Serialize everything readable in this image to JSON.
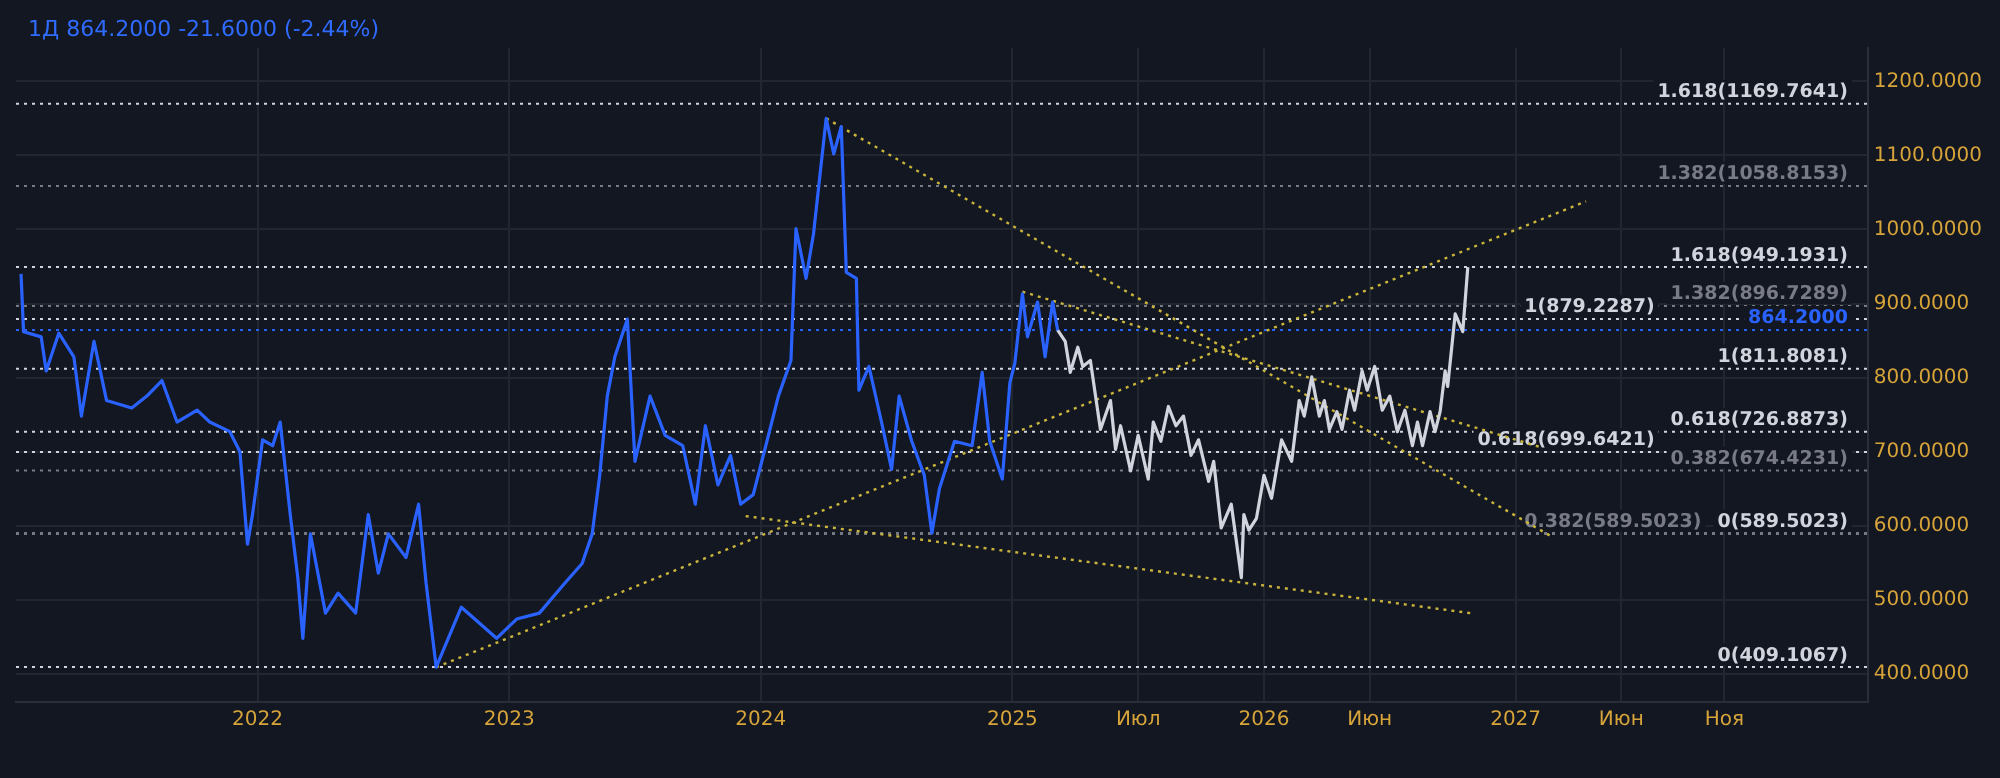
{
  "chart_data": {
    "type": "line",
    "title": "1Д 864.2000 -21.6000 (-2.44%)",
    "xlim": [
      2021.04,
      2028.4
    ],
    "xticks": [
      2022,
      2023,
      2024,
      2025,
      {
        "value": 2025.5,
        "label": "Июл"
      },
      2026,
      {
        "value": 2026.42,
        "label": "Июн"
      },
      2027,
      {
        "value": 2027.42,
        "label": "Июн"
      },
      {
        "value": 2027.83,
        "label": "Ноя"
      }
    ],
    "ylim": [
      362,
      1245
    ],
    "yticks": [
      {
        "value": 400,
        "label": "400.0000"
      },
      {
        "value": 500,
        "label": "500.0000"
      },
      {
        "value": 600,
        "label": "600.0000"
      },
      {
        "value": 700,
        "label": "700.0000"
      },
      {
        "value": 800,
        "label": "800.0000"
      },
      {
        "value": 900,
        "label": "900.0000"
      },
      {
        "value": 1000,
        "label": "1000.0000"
      },
      {
        "value": 1100,
        "label": "1100.0000"
      },
      {
        "value": 1200,
        "label": "1200.0000"
      }
    ],
    "grid": true,
    "legend": false,
    "marker": "none",
    "series": [
      {
        "color": "#2962ff",
        "line_style": "solid",
        "x": [
          2021.06,
          2021.07,
          2021.14,
          2021.16,
          2021.21,
          2021.27,
          2021.3,
          2021.35,
          2021.4,
          2021.5,
          2021.56,
          2021.62,
          2021.68,
          2021.76,
          2021.81,
          2021.89,
          2021.93,
          2021.96,
          2021.98,
          2022.02,
          2022.06,
          2022.09,
          2022.13,
          2022.16,
          2022.18,
          2022.21,
          2022.27,
          2022.32,
          2022.39,
          2022.44,
          2022.48,
          2022.52,
          2022.59,
          2022.64,
          2022.67,
          2022.71,
          2022.81,
          2022.88,
          2022.95,
          2023.03,
          2023.12,
          2023.22,
          2023.29,
          2023.33,
          2023.36,
          2023.39,
          2023.42,
          2023.47,
          2023.5,
          2023.56,
          2023.62,
          2023.69,
          2023.74,
          2023.78,
          2023.83,
          2023.88,
          2023.92,
          2023.97,
          2024.02,
          2024.07,
          2024.12,
          2024.14,
          2024.18,
          2024.21,
          2024.26,
          2024.29,
          2024.32,
          2024.34,
          2024.38,
          2024.39,
          2024.43,
          2024.48,
          2024.52,
          2024.55,
          2024.6,
          2024.65,
          2024.68,
          2024.71,
          2024.77,
          2024.84,
          2024.88,
          2024.91,
          2024.96,
          2024.99,
          2025.01,
          2025.04,
          2025.06,
          2025.1,
          2025.13,
          2025.16,
          2025.18
        ],
        "values": [
          940,
          862,
          855,
          809,
          860,
          828,
          748,
          849,
          769,
          759,
          775,
          796,
          740,
          756,
          740,
          727,
          700,
          575,
          615,
          716,
          708,
          740,
          615,
          530,
          448,
          589,
          482,
          509,
          482,
          615,
          536,
          589,
          557,
          629,
          522,
          409,
          490,
          469,
          448,
          474,
          482,
          522,
          549,
          589,
          668,
          775,
          828,
          879,
          687,
          775,
          722,
          708,
          629,
          735,
          655,
          695,
          629,
          642,
          708,
          775,
          823,
          1001,
          934,
          995,
          1150,
          1102,
          1139,
          942,
          934,
          783,
          815,
          740,
          676,
          775,
          714,
          668,
          590,
          650,
          714,
          708,
          807,
          714,
          663,
          793,
          820,
          913,
          855,
          902,
          828,
          902,
          864
        ]
      },
      {
        "color": "#d1d4dc",
        "line_style": "solid",
        "x": [
          2025.18,
          2025.21,
          2025.23,
          2025.26,
          2025.28,
          2025.31,
          2025.35,
          2025.39,
          2025.41,
          2025.43,
          2025.47,
          2025.5,
          2025.54,
          2025.56,
          2025.59,
          2025.62,
          2025.65,
          2025.68,
          2025.71,
          2025.74,
          2025.78,
          2025.8,
          2025.83,
          2025.87,
          2025.91,
          2025.92,
          2025.94,
          2025.97,
          2026,
          2026.03,
          2026.07,
          2026.11,
          2026.14,
          2026.16,
          2026.19,
          2026.22,
          2026.24,
          2026.26,
          2026.29,
          2026.31,
          2026.34,
          2026.36,
          2026.39,
          2026.41,
          2026.44,
          2026.47,
          2026.5,
          2026.53,
          2026.56,
          2026.59,
          2026.61,
          2026.63,
          2026.66,
          2026.68,
          2026.7,
          2026.72,
          2026.73,
          2026.76,
          2026.79,
          2026.81
        ],
        "values": [
          864,
          849,
          807,
          841,
          815,
          823,
          730,
          769,
          703,
          735,
          674,
          722,
          663,
          740,
          714,
          761,
          735,
          748,
          695,
          716,
          660,
          687,
          597,
          629,
          530,
          615,
          594,
          610,
          668,
          637,
          716,
          687,
          769,
          748,
          801,
          748,
          769,
          730,
          754,
          730,
          783,
          756,
          809,
          783,
          815,
          756,
          775,
          727,
          756,
          708,
          740,
          708,
          754,
          727,
          754,
          809,
          788,
          886,
          862,
          949
        ]
      },
      {
        "color": "#c9b53c",
        "line_style": "dotted",
        "x": [
          2024.26,
          2027.14
        ],
        "values": [
          1150,
          586
        ]
      },
      {
        "color": "#c9b53c",
        "line_style": "dotted",
        "x": [
          2025.04,
          2027.1
        ],
        "values": [
          916,
          706
        ]
      },
      {
        "color": "#c9b53c",
        "line_style": "dotted",
        "x": [
          2022.71,
          2027.28
        ],
        "values": [
          409,
          1038
        ]
      },
      {
        "color": "#c9b53c",
        "line_style": "dotted",
        "x": [
          2023.94,
          2026.82
        ],
        "values": [
          613,
          482
        ]
      }
    ],
    "ref_lines": [
      {
        "axis": "y",
        "value": 1169.7641,
        "label": "1.618(1169.7641)",
        "color": "#d1d4dc",
        "line_style": "dotted"
      },
      {
        "axis": "y",
        "value": 1058.8153,
        "label": "1.382(1058.8153)",
        "color": "#787b86",
        "line_style": "dotted"
      },
      {
        "axis": "y",
        "value": 949.1931,
        "label": "1.618(949.1931)",
        "color": "#d1d4dc",
        "line_style": "dotted"
      },
      {
        "axis": "y",
        "value": 896.7289,
        "label": "1.382(896.7289)",
        "color": "#787b86",
        "line_style": "dotted"
      },
      {
        "axis": "y",
        "value": 879.2287,
        "label": "1(879.2287)",
        "color": "#d1d4dc",
        "line_style": "dotted"
      },
      {
        "axis": "y",
        "value": 864.2,
        "label": "864.2000",
        "color": "#2962ff",
        "line_style": "dotted"
      },
      {
        "axis": "y",
        "value": 811.8081,
        "label": "1(811.8081)",
        "color": "#d1d4dc",
        "line_style": "dotted"
      },
      {
        "axis": "y",
        "value": 726.8873,
        "label": "0.618(726.8873)",
        "color": "#d1d4dc",
        "line_style": "dotted"
      },
      {
        "axis": "y",
        "value": 699.6421,
        "label": "0.618(699.6421)",
        "color": "#d1d4dc",
        "line_style": "dotted"
      },
      {
        "axis": "y",
        "value": 674.4231,
        "label": "0.382(674.4231)",
        "color": "#787b86",
        "line_style": "dotted"
      },
      {
        "axis": "y",
        "value": 589.5023,
        "label": "0(589.5023)",
        "color": "#d1d4dc",
        "line_style": "dotted"
      },
      {
        "axis": "y",
        "value": 589.5023,
        "label": "0.382(589.5023)",
        "color": "#787b86",
        "line_style": "dotted"
      },
      {
        "axis": "y",
        "value": 409.1067,
        "label": "0(409.1067)",
        "color": "#d1d4dc",
        "line_style": "dotted"
      }
    ]
  }
}
